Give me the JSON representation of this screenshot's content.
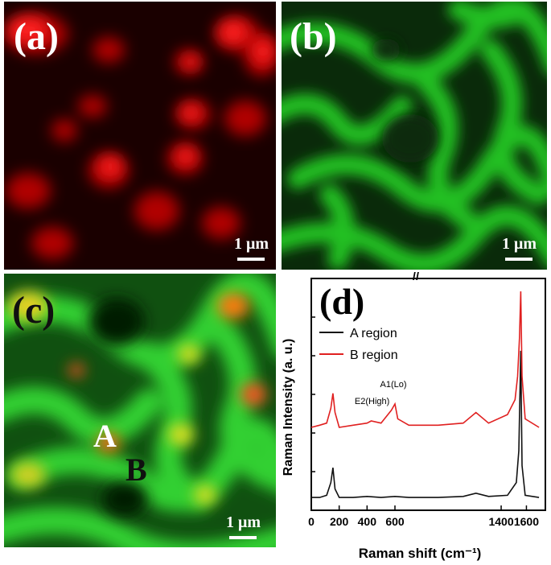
{
  "panels": {
    "a": {
      "label": "(a)",
      "scale": "1 μm"
    },
    "b": {
      "label": "(b)",
      "scale": "1 μm"
    },
    "c": {
      "label": "(c)",
      "scale": "1 μm",
      "marker_a": "A",
      "marker_b": "B"
    },
    "d": {
      "label": "(d)"
    }
  },
  "colors": {
    "red_channel": "#ff1a1a",
    "green_channel": "#22e022",
    "overlap": "#e6e020",
    "series_a": "#111111",
    "series_b": "#e02020"
  },
  "chart_data": {
    "type": "line",
    "xlabel": "Raman shift (cm⁻¹)",
    "ylabel": "Raman Intensity (a. u.)",
    "xticks": [
      "0",
      "200",
      "400",
      "600",
      "1400",
      "1600"
    ],
    "axis_break": "//",
    "legend_position": "top-left",
    "annotations": [
      {
        "text": "E2(High)",
        "x": 438
      },
      {
        "text": "A1(Lo)",
        "x": 574
      }
    ],
    "series": [
      {
        "name": "A region",
        "color": "#111111",
        "points": [
          [
            0,
            0.03
          ],
          [
            60,
            0.03
          ],
          [
            110,
            0.04
          ],
          [
            140,
            0.1
          ],
          [
            155,
            0.17
          ],
          [
            170,
            0.07
          ],
          [
            200,
            0.03
          ],
          [
            300,
            0.03
          ],
          [
            400,
            0.035
          ],
          [
            500,
            0.03
          ],
          [
            600,
            0.035
          ],
          [
            700,
            0.03
          ],
          [
            900,
            0.03
          ],
          [
            1100,
            0.035
          ],
          [
            1200,
            0.05
          ],
          [
            1300,
            0.035
          ],
          [
            1450,
            0.04
          ],
          [
            1520,
            0.1
          ],
          [
            1540,
            0.25
          ],
          [
            1555,
            0.72
          ],
          [
            1565,
            0.18
          ],
          [
            1590,
            0.04
          ],
          [
            1700,
            0.03
          ]
        ]
      },
      {
        "name": "B region",
        "color": "#e02020",
        "points": [
          [
            0,
            0.36
          ],
          [
            60,
            0.37
          ],
          [
            110,
            0.38
          ],
          [
            140,
            0.45
          ],
          [
            155,
            0.52
          ],
          [
            170,
            0.43
          ],
          [
            200,
            0.36
          ],
          [
            300,
            0.37
          ],
          [
            400,
            0.38
          ],
          [
            430,
            0.39
          ],
          [
            500,
            0.38
          ],
          [
            574,
            0.44
          ],
          [
            600,
            0.47
          ],
          [
            620,
            0.4
          ],
          [
            700,
            0.37
          ],
          [
            900,
            0.37
          ],
          [
            1100,
            0.38
          ],
          [
            1200,
            0.43
          ],
          [
            1300,
            0.38
          ],
          [
            1450,
            0.42
          ],
          [
            1510,
            0.49
          ],
          [
            1530,
            0.6
          ],
          [
            1545,
            0.78
          ],
          [
            1555,
            1.0
          ],
          [
            1565,
            0.6
          ],
          [
            1590,
            0.4
          ],
          [
            1700,
            0.36
          ]
        ]
      }
    ]
  }
}
